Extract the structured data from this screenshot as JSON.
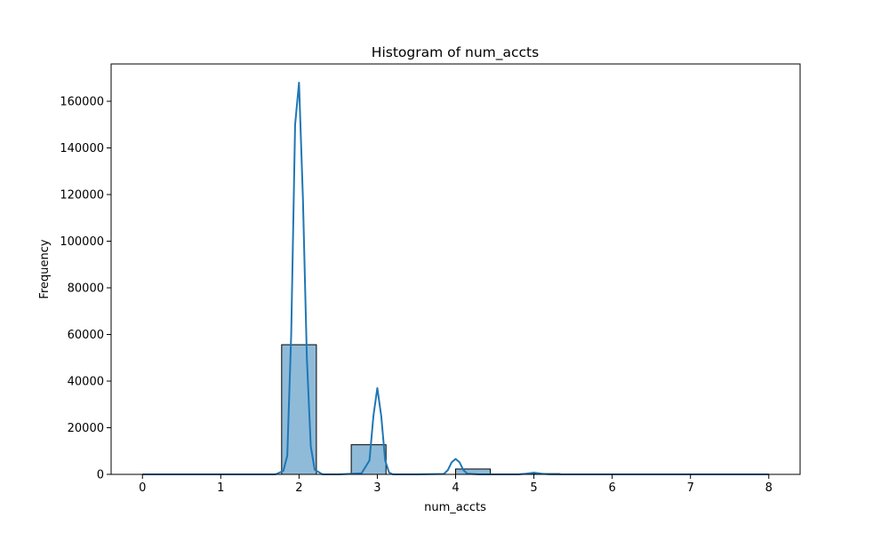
{
  "chart_data": {
    "type": "histogram",
    "title": "Histogram of num_accts",
    "xlabel": "num_accts",
    "ylabel": "Frequency",
    "xlim": [
      -0.4,
      8.4
    ],
    "ylim": [
      0,
      176000
    ],
    "xticks": [
      0,
      1,
      2,
      3,
      4,
      5,
      6,
      7,
      8
    ],
    "yticks": [
      0,
      20000,
      40000,
      60000,
      80000,
      100000,
      120000,
      140000,
      160000
    ],
    "grid": false,
    "bar_color": "#1f77b4",
    "bar_opacity": 0.5,
    "edge_color": "#000000",
    "kde_color": "#1f77b4",
    "bins": [
      {
        "x0": 0.0,
        "x1": 0.444,
        "count": 0
      },
      {
        "x0": 0.444,
        "x1": 0.889,
        "count": 0
      },
      {
        "x0": 0.889,
        "x1": 1.333,
        "count": 0
      },
      {
        "x0": 1.333,
        "x1": 1.778,
        "count": 0
      },
      {
        "x0": 1.778,
        "x1": 2.222,
        "count": 55600
      },
      {
        "x0": 2.222,
        "x1": 2.667,
        "count": 0
      },
      {
        "x0": 2.667,
        "x1": 3.111,
        "count": 12700
      },
      {
        "x0": 3.111,
        "x1": 3.556,
        "count": 0
      },
      {
        "x0": 3.556,
        "x1": 4.0,
        "count": 0
      },
      {
        "x0": 4.0,
        "x1": 4.444,
        "count": 2300
      },
      {
        "x0": 4.444,
        "x1": 4.889,
        "count": 0
      },
      {
        "x0": 4.889,
        "x1": 5.333,
        "count": 300
      },
      {
        "x0": 5.333,
        "x1": 5.778,
        "count": 0
      },
      {
        "x0": 5.778,
        "x1": 6.222,
        "count": 50
      },
      {
        "x0": 6.222,
        "x1": 6.667,
        "count": 0
      },
      {
        "x0": 6.667,
        "x1": 7.111,
        "count": 10
      },
      {
        "x0": 7.111,
        "x1": 7.556,
        "count": 0
      },
      {
        "x0": 7.556,
        "x1": 8.0,
        "count": 5
      }
    ],
    "kde": {
      "x": [
        0.0,
        0.5,
        1.0,
        1.5,
        1.7,
        1.8,
        1.85,
        1.9,
        1.95,
        2.0,
        2.05,
        2.1,
        2.15,
        2.2,
        2.3,
        2.5,
        2.8,
        2.9,
        2.95,
        3.0,
        3.05,
        3.1,
        3.15,
        3.2,
        3.5,
        3.85,
        3.9,
        3.95,
        4.0,
        4.05,
        4.1,
        4.15,
        4.3,
        4.8,
        4.9,
        5.0,
        5.1,
        5.2,
        5.5,
        6.0,
        7.0,
        8.0
      ],
      "y": [
        0,
        0,
        0,
        0,
        0,
        1500,
        8000,
        60000,
        150000,
        168000,
        118000,
        50000,
        12000,
        2000,
        0,
        0,
        500,
        6000,
        25000,
        37000,
        25000,
        6000,
        800,
        0,
        0,
        200,
        1800,
        5200,
        6600,
        5200,
        1800,
        300,
        0,
        0,
        300,
        700,
        300,
        50,
        0,
        0,
        0,
        0
      ]
    }
  }
}
